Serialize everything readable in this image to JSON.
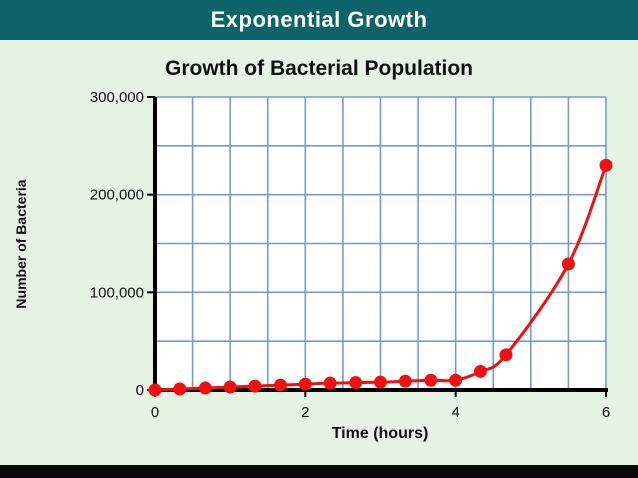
{
  "banner": {
    "title": "Exponential Growth"
  },
  "chart_data": {
    "type": "line",
    "title": "Growth of Bacterial Population",
    "xlabel": "Time (hours)",
    "ylabel": "Number of Bacteria",
    "xlim": [
      0,
      6
    ],
    "ylim": [
      0,
      300000
    ],
    "x_ticks": [
      0,
      2,
      4,
      6
    ],
    "x_tick_labels": [
      "0",
      "2",
      "4",
      "6"
    ],
    "y_ticks": [
      0,
      100000,
      200000,
      300000
    ],
    "y_tick_labels": [
      "0",
      "100,000",
      "200,000",
      "300,000"
    ],
    "grid": true,
    "series": [
      {
        "color": "#ee1111",
        "x": [
          0,
          0.33,
          0.67,
          1.0,
          1.33,
          1.67,
          2.0,
          2.33,
          2.67,
          3.0,
          3.33,
          3.67,
          4.0,
          4.33,
          4.67,
          5.5,
          6.0
        ],
        "y": [
          0,
          1000,
          2000,
          3000,
          4000,
          5000,
          6000,
          7000,
          7500,
          8000,
          9000,
          10000,
          10000,
          19000,
          36000,
          129000,
          230000
        ]
      }
    ]
  }
}
